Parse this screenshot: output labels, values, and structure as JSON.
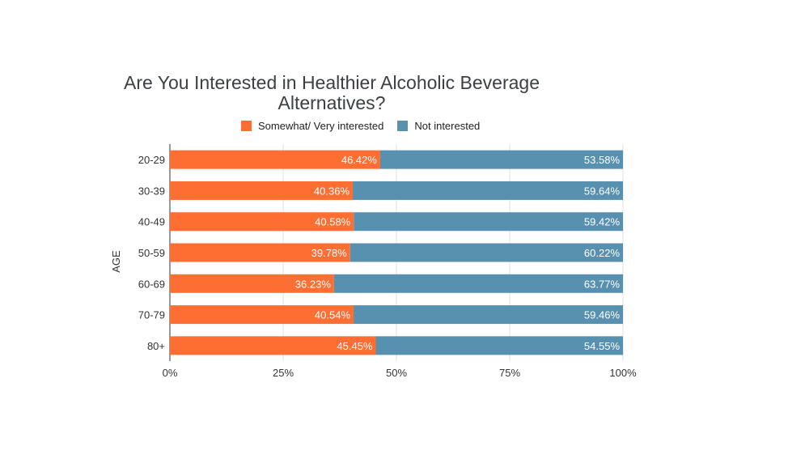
{
  "chart_data": {
    "type": "bar",
    "orientation": "horizontal",
    "stacked": true,
    "title": "Are You Interested in Healthier Alcoholic Beverage Alternatives?",
    "title_lines": [
      "Are You Interested in Healthier Alcoholic Beverage",
      "Alternatives?"
    ],
    "ylabel": "AGE",
    "xlabel": "",
    "categories": [
      "20-29",
      "30-39",
      "40-49",
      "50-59",
      "60-69",
      "70-79",
      "80+"
    ],
    "x_ticks": [
      "0%",
      "25%",
      "50%",
      "75%",
      "100%"
    ],
    "xlim": [
      0,
      100
    ],
    "grid": true,
    "legend_position": "top",
    "series": [
      {
        "name": "Somewhat/ Very interested",
        "color": "#fd6e33",
        "values": [
          46.42,
          40.36,
          40.58,
          39.78,
          36.23,
          40.54,
          45.45
        ],
        "labels": [
          "46.42%",
          "40.36%",
          "40.58%",
          "39.78%",
          "36.23%",
          "40.54%",
          "45.45%"
        ]
      },
      {
        "name": "Not interested",
        "color": "#5891b0",
        "values": [
          53.58,
          59.64,
          59.42,
          60.22,
          63.77,
          59.46,
          54.55
        ],
        "labels": [
          "53.58%",
          "59.64%",
          "59.42%",
          "60.22%",
          "63.77%",
          "59.46%",
          "54.55%"
        ]
      }
    ]
  }
}
